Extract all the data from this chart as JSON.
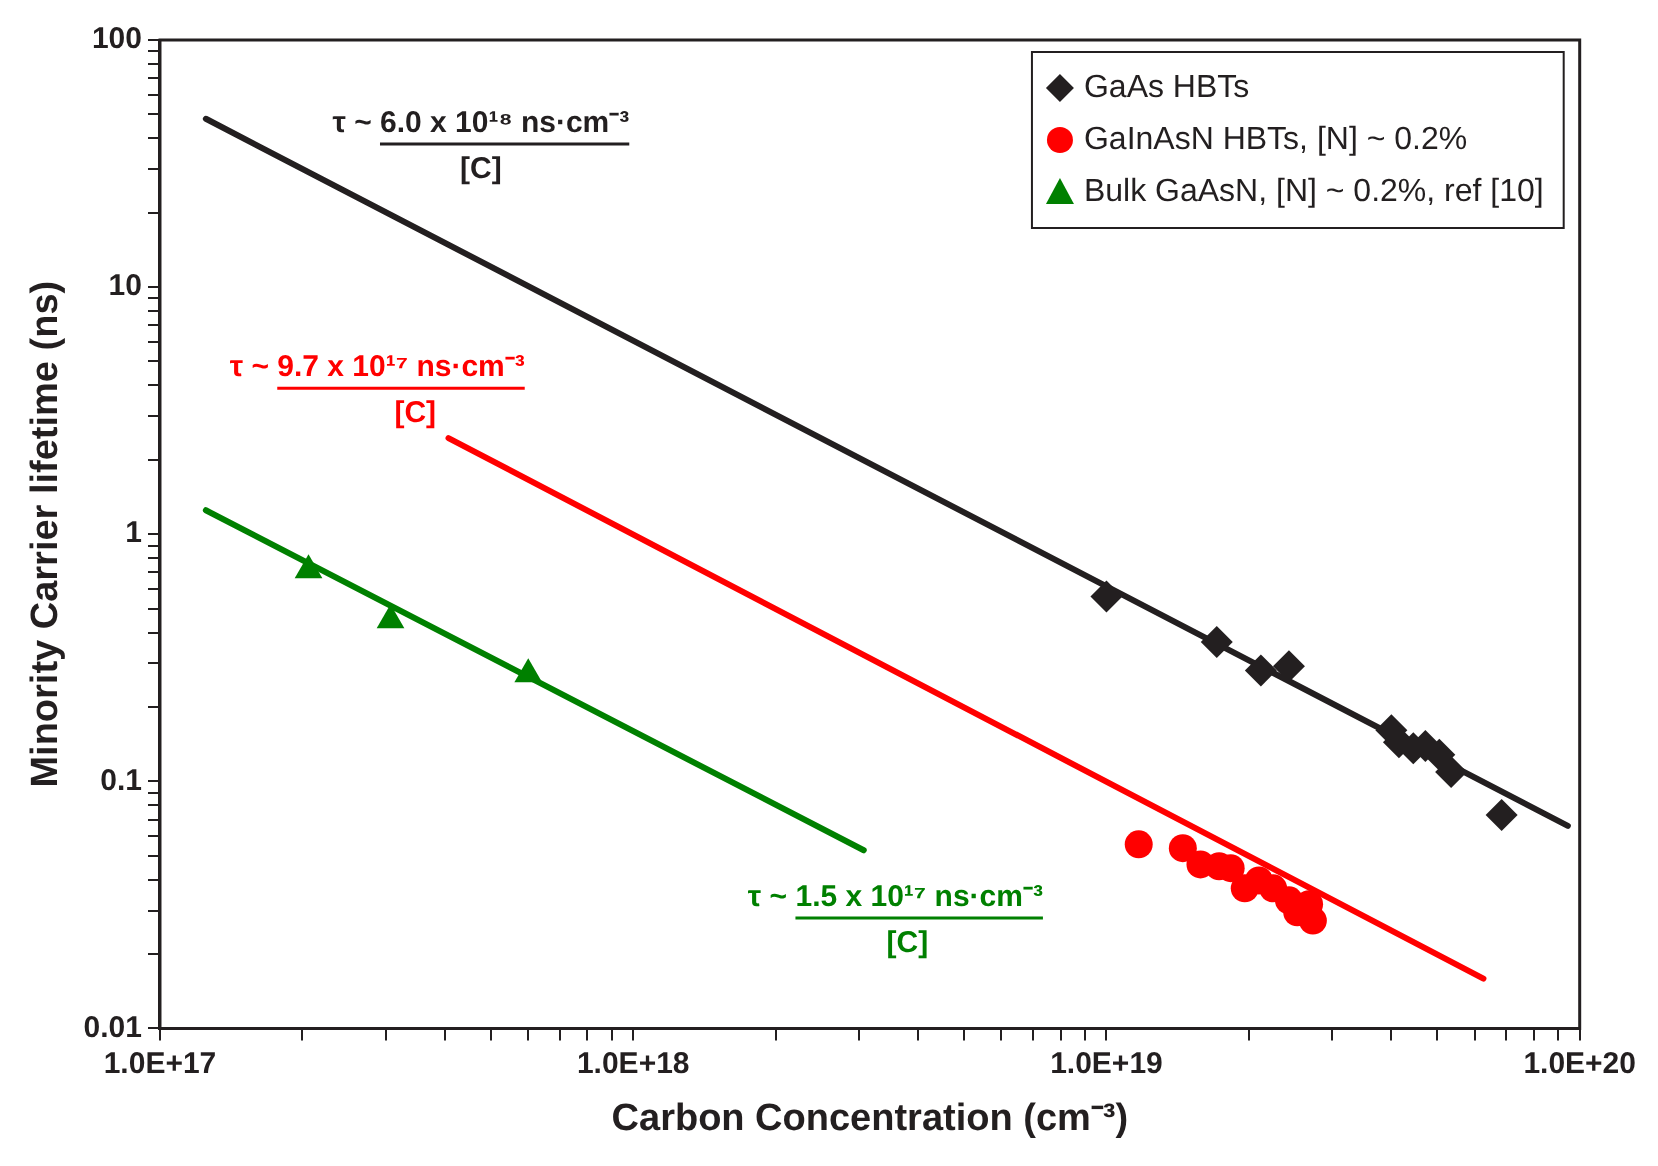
{
  "chart_data": {
    "type": "scatter",
    "xlabel": "Carbon Concentration (cm⁻³)",
    "ylabel": "Minority Carrier lifetime (ns)",
    "log": "xy",
    "grid": false,
    "legend": "top right",
    "xlim": [
      1e+17,
      1e+20
    ],
    "ylim": [
      0.01,
      100
    ],
    "xticks": [
      {
        "value": 1e+17,
        "label": "1.0E+17"
      },
      {
        "value": 2e+17,
        "label": null
      },
      {
        "value": 3e+17,
        "label": null
      },
      {
        "value": 4e+17,
        "label": null
      },
      {
        "value": 5e+17,
        "label": null
      },
      {
        "value": 6e+17,
        "label": null
      },
      {
        "value": 7e+17,
        "label": null
      },
      {
        "value": 8e+17,
        "label": null
      },
      {
        "value": 9e+17,
        "label": null
      },
      {
        "value": 1e+18,
        "label": "1.0E+18"
      },
      {
        "value": 2e+18,
        "label": null
      },
      {
        "value": 3e+18,
        "label": null
      },
      {
        "value": 4e+18,
        "label": null
      },
      {
        "value": 5e+18,
        "label": null
      },
      {
        "value": 6e+18,
        "label": null
      },
      {
        "value": 7e+18,
        "label": null
      },
      {
        "value": 8e+18,
        "label": null
      },
      {
        "value": 9e+18,
        "label": null
      },
      {
        "value": 1e+19,
        "label": "1.0E+19"
      },
      {
        "value": 2e+19,
        "label": null
      },
      {
        "value": 3e+19,
        "label": null
      },
      {
        "value": 4e+19,
        "label": null
      },
      {
        "value": 5e+19,
        "label": null
      },
      {
        "value": 6e+19,
        "label": null
      },
      {
        "value": 7e+19,
        "label": null
      },
      {
        "value": 8e+19,
        "label": null
      },
      {
        "value": 9e+19,
        "label": null
      },
      {
        "value": 1e+20,
        "label": "1.0E+20"
      }
    ],
    "yticks": [
      0.01,
      {
        "value": 0.02,
        "label": null
      },
      {
        "value": 0.03,
        "label": null
      },
      {
        "value": 0.04,
        "label": null
      },
      {
        "value": 0.05,
        "label": null
      },
      {
        "value": 0.06,
        "label": null
      },
      {
        "value": 0.07,
        "label": null
      },
      {
        "value": 0.08,
        "label": null
      },
      {
        "value": 0.09,
        "label": null
      },
      0.1,
      {
        "value": 0.2,
        "label": null
      },
      {
        "value": 0.3,
        "label": null
      },
      {
        "value": 0.4,
        "label": null
      },
      {
        "value": 0.5,
        "label": null
      },
      {
        "value": 0.6,
        "label": null
      },
      {
        "value": 0.7,
        "label": null
      },
      {
        "value": 0.8,
        "label": null
      },
      {
        "value": 0.9,
        "label": null
      },
      1,
      {
        "value": 2,
        "label": null
      },
      {
        "value": 3,
        "label": null
      },
      {
        "value": 4,
        "label": null
      },
      {
        "value": 5,
        "label": null
      },
      {
        "value": 6,
        "label": null
      },
      {
        "value": 7,
        "label": null
      },
      {
        "value": 8,
        "label": null
      },
      {
        "value": 9,
        "label": null
      },
      10,
      {
        "value": 20,
        "label": null
      },
      {
        "value": 30,
        "label": null
      },
      {
        "value": 40,
        "label": null
      },
      {
        "value": 50,
        "label": null
      },
      {
        "value": 60,
        "label": null
      },
      {
        "value": 70,
        "label": null
      },
      {
        "value": 80,
        "label": null
      },
      {
        "value": 90,
        "label": null
      },
      100
    ],
    "series": [
      {
        "name": "GaAs HBTs",
        "marker": "diamond",
        "color": "#231f20",
        "x": [
          1e+19,
          1.71e+19,
          2.12e+19,
          2.43e+19,
          4e+19,
          4.15e+19,
          4.45e+19,
          4.72e+19,
          5.05e+19,
          5.35e+19,
          6.84e+19
        ],
        "values": [
          0.56,
          0.366,
          0.281,
          0.292,
          0.161,
          0.144,
          0.136,
          0.139,
          0.128,
          0.109,
          0.073
        ]
      },
      {
        "name": "GaInAsN HBTs, [N] ~ 0.2%",
        "marker": "circle",
        "color": "#ff0000",
        "x": [
          1.17e+19,
          1.45e+19,
          1.58e+19,
          1.73e+19,
          1.83e+19,
          1.96e+19,
          2.1e+19,
          2.25e+19,
          2.43e+19,
          2.53e+19,
          2.68e+19,
          2.73e+19
        ],
        "values": [
          0.0556,
          0.0536,
          0.0461,
          0.0453,
          0.0445,
          0.0369,
          0.0397,
          0.0369,
          0.033,
          0.0295,
          0.0318,
          0.0273
        ]
      },
      {
        "name": "Bulk GaAsN, [N] ~ 0.2%, ref [10]",
        "marker": "triangle",
        "color": "#008000",
        "x": [
          2.06e+17,
          3.07e+17,
          6e+17
        ],
        "values": [
          0.715,
          0.449,
          0.271
        ]
      },
      {
        "type": "line",
        "marker": "none",
        "color": "#231f20",
        "x": [
          1.25e+17,
          9.44e+19
        ],
        "values": [
          48,
          0.066
        ]
      },
      {
        "type": "line",
        "marker": "none",
        "color": "#ff0000",
        "x": [
          4.07e+17,
          6.26e+19
        ],
        "values": [
          2.45,
          0.0159
        ]
      },
      {
        "type": "line",
        "marker": "none",
        "color": "#008000",
        "x": [
          1.25e+17,
          3.07e+18
        ],
        "values": [
          1.25,
          0.0526
        ]
      }
    ],
    "annotations": [
      "τ ~ 6.0 x 10¹⁸ ns·cm⁻³",
      "[C]",
      "τ ~ 9.7 x 10¹⁷ ns·cm⁻³",
      "[C]",
      "τ ~ 1.5 x 10¹⁷ ns·cm⁻³",
      "[C]"
    ]
  }
}
